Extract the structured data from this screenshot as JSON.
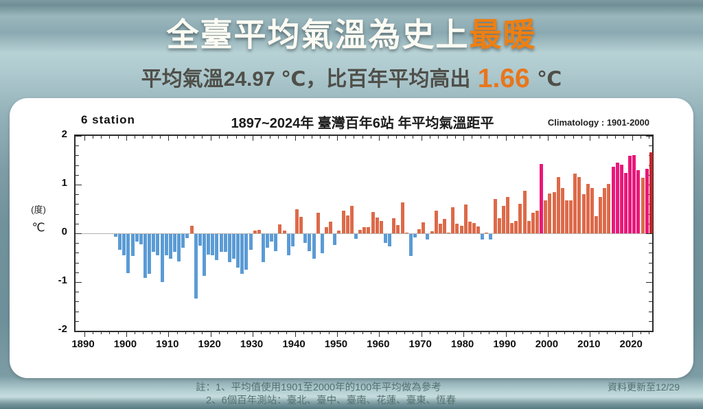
{
  "header": {
    "title_prefix": "全臺平均氣溫為史上",
    "title_highlight": "最暖",
    "subtitle_prefix": "平均氣溫24.97 ℃，比百年平均高出",
    "subtitle_value": "1.66",
    "subtitle_suffix": "℃"
  },
  "colors": {
    "bar_negative": "#5b9bd5",
    "bar_positive": "#dd6a49",
    "bar_top10_pink": "#e9187a",
    "bar_record_red": "#c1272d",
    "accent_orange": "#ee7f12",
    "zero_line": "#b3b3b3"
  },
  "chart_data": {
    "type": "bar",
    "title": "1897~2024年  臺灣百年6站 年平均氣溫距平",
    "left_label": "6 station",
    "right_label": "Climatology : 1901-2000",
    "ylabel_line1": "(度)",
    "ylabel_line2": "℃",
    "ylim": [
      -2,
      2
    ],
    "yticks": [
      2,
      1,
      0,
      -1,
      -2
    ],
    "y_minor_step": 0.2,
    "xticks": [
      1890,
      1900,
      1910,
      1920,
      1930,
      1940,
      1950,
      1960,
      1970,
      1980,
      1990,
      2000,
      2010,
      2020
    ],
    "x_minor_step_years": 2,
    "grid": "zero-line-only",
    "start_year": 1897,
    "end_year": 2024,
    "values": [
      -0.05,
      -0.32,
      -0.43,
      -0.8,
      -0.45,
      -0.15,
      -0.21,
      -0.9,
      -0.82,
      -0.37,
      -0.44,
      -0.98,
      -0.44,
      -0.5,
      -0.37,
      -0.56,
      -0.28,
      -0.09,
      0.16,
      -1.33,
      -0.24,
      -0.86,
      -0.42,
      -0.44,
      -0.53,
      -0.37,
      -0.36,
      -0.58,
      -0.5,
      -0.69,
      -0.81,
      -0.73,
      -0.32,
      0.06,
      0.07,
      -0.58,
      -0.28,
      -0.16,
      -0.35,
      0.19,
      0.05,
      -0.44,
      -0.25,
      0.49,
      0.34,
      -0.19,
      -0.35,
      -0.5,
      0.42,
      -0.4,
      0.13,
      0.24,
      -0.22,
      0.05,
      0.46,
      0.36,
      0.57,
      -0.1,
      0.07,
      0.12,
      0.13,
      0.44,
      0.33,
      0.26,
      -0.18,
      -0.26,
      0.31,
      0.17,
      0.64,
      0.02,
      -0.45,
      -0.07,
      0.09,
      0.23,
      -0.11,
      0.04,
      0.46,
      0.2,
      0.29,
      0.02,
      0.54,
      0.2,
      0.16,
      0.59,
      0.24,
      0.21,
      0.14,
      -0.11,
      0.02,
      -0.11,
      0.71,
      0.31,
      0.57,
      0.74,
      0.21,
      0.25,
      0.6,
      0.88,
      0.25,
      0.42,
      0.47,
      1.42,
      0.68,
      0.81,
      0.85,
      1.16,
      0.93,
      0.68,
      0.68,
      1.22,
      1.15,
      0.8,
      1.02,
      0.93,
      0.35,
      0.75,
      0.93,
      1.01,
      1.37,
      1.45,
      1.41,
      1.24,
      1.59,
      1.61,
      1.29,
      1.14,
      1.32,
      1.66
    ],
    "top10_pink_years": [
      1998,
      2015,
      2016,
      2017,
      2018,
      2019,
      2020,
      2021,
      2023
    ],
    "record_year": 2024
  },
  "footer": {
    "note_line1": "註：1、平均值使用1901至2000年的100年平均做為參考",
    "note_line2": "2、6個百年測站：臺北、臺中、臺南、花蓮、臺東、恆春",
    "updated": "資料更新至12/29"
  }
}
